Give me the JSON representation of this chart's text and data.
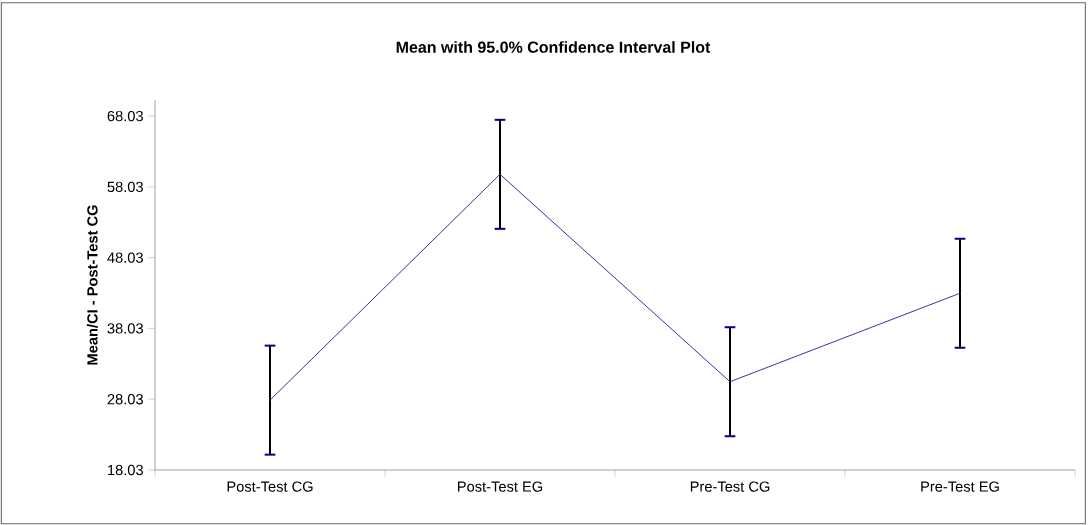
{
  "chart_data": {
    "type": "line",
    "title": "Mean with 95.0% Confidence Interval Plot",
    "ylabel": "Mean/CI - Post-Test CG",
    "categories": [
      "Post-Test CG",
      "Post-Test EG",
      "Pre-Test CG",
      "Pre-Test EG"
    ],
    "series": [
      {
        "color": "#00008b",
        "values": [
          27.9,
          59.8,
          30.5,
          43.0
        ],
        "errors": [
          7.7,
          7.7,
          7.7,
          7.7
        ]
      }
    ],
    "ylim": [
      18.03,
      70.3
    ],
    "yticks": [
      18.03,
      28.03,
      38.03,
      48.03,
      58.03,
      68.03
    ],
    "marker": "none",
    "line_style": "solid",
    "grid": false
  }
}
